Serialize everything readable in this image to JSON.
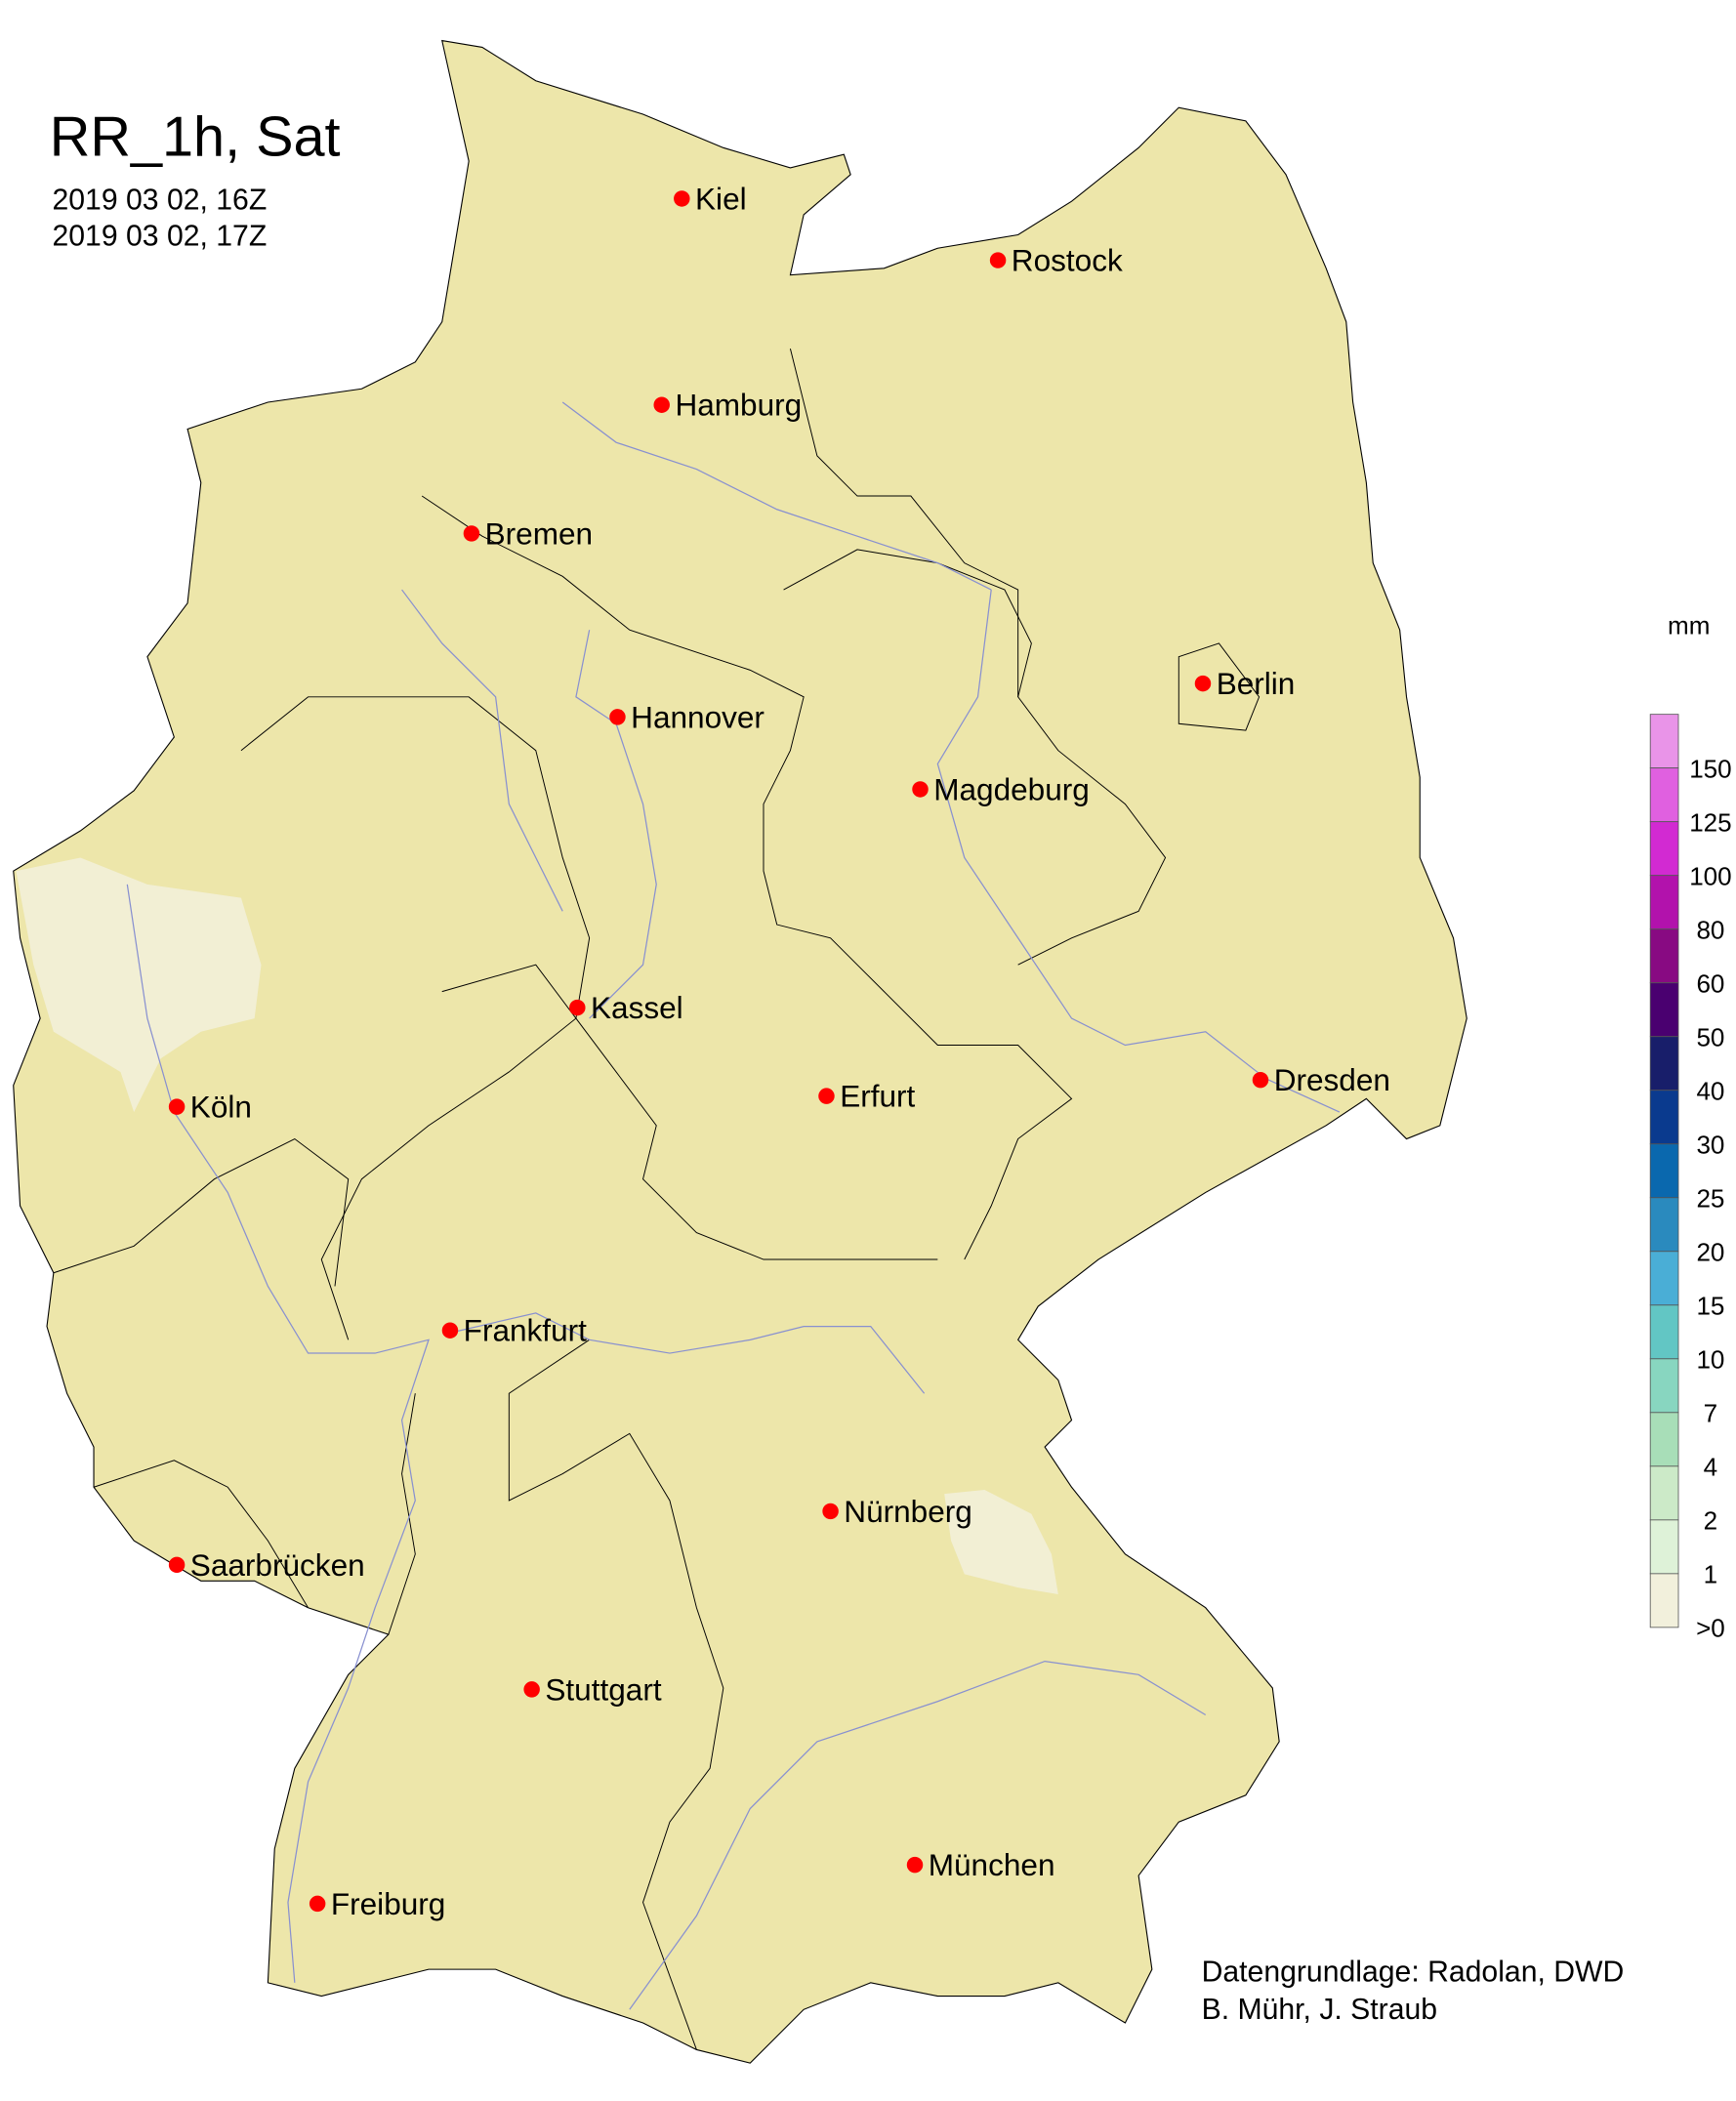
{
  "title": "RR_1h, Sat",
  "time_start": "2019 03 02, 16Z",
  "time_end": "2019 03 02, 17Z",
  "credits": [
    "Datengrundlage: Radolan, DWD",
    "B. Mühr, J. Straub"
  ],
  "colors": {
    "land": "#ede6aa",
    "rivers": "#8890d0",
    "city_marker": "#ff0000",
    "light_precip": "#f2f0dc"
  },
  "cities": [
    {
      "name": "Kiel"
    },
    {
      "name": "Rostock"
    },
    {
      "name": "Hamburg"
    },
    {
      "name": "Bremen"
    },
    {
      "name": "Berlin"
    },
    {
      "name": "Hannover"
    },
    {
      "name": "Magdeburg"
    },
    {
      "name": "Kassel"
    },
    {
      "name": "Köln"
    },
    {
      "name": "Erfurt"
    },
    {
      "name": "Dresden"
    },
    {
      "name": "Frankfurt"
    },
    {
      "name": "Nürnberg"
    },
    {
      "name": "Saarbrücken"
    },
    {
      "name": "Stuttgart"
    },
    {
      "name": "Freiburg"
    },
    {
      "name": "München"
    }
  ],
  "legend": {
    "unit": "mm",
    "labels": [
      "150",
      "125",
      "100",
      "80",
      "60",
      "50",
      "40",
      "30",
      "25",
      "20",
      "15",
      "10",
      "7",
      "4",
      "2",
      "1",
      ">0"
    ],
    "colors": [
      "#e994e8",
      "#e060e0",
      "#d22ad2",
      "#b212ac",
      "#880a82",
      "#4a0070",
      "#181e6a",
      "#0a3a8e",
      "#0a68ae",
      "#2a8abe",
      "#4aaed6",
      "#62c6c4",
      "#88d6c0",
      "#a8deb8",
      "#cceac8",
      "#def2d8",
      "#f2f0dc"
    ]
  }
}
